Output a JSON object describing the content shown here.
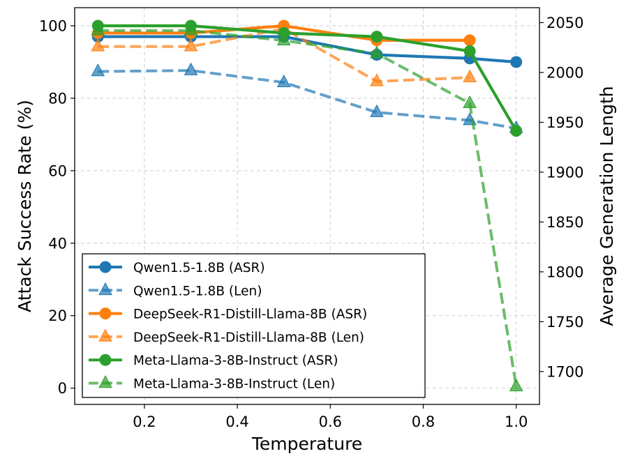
{
  "chart_data": {
    "type": "line",
    "xlabel": "Temperature",
    "ylabel": "Attack Success Rate (%)",
    "y2label": "Average Generation Length",
    "xlim": [
      0.05,
      1.05
    ],
    "ylim": [
      -4.5,
      105
    ],
    "y2lim": [
      1667,
      2065
    ],
    "xticks": [
      0.2,
      0.4,
      0.6,
      0.8,
      1.0
    ],
    "xtick_labels": [
      "0.2",
      "0.4",
      "0.6",
      "0.8",
      "1.0"
    ],
    "yticks": [
      0,
      20,
      40,
      60,
      80,
      100
    ],
    "ytick_labels": [
      "0",
      "20",
      "40",
      "60",
      "80",
      "100"
    ],
    "y2ticks": [
      1700,
      1750,
      1800,
      1850,
      1900,
      1950,
      2000,
      2050
    ],
    "y2tick_labels": [
      "1700",
      "1750",
      "1800",
      "1850",
      "1900",
      "1950",
      "2000",
      "2050"
    ],
    "grid": true,
    "legend_position": "lower-left",
    "series": [
      {
        "name": "Qwen1.5-1.8B (ASR)",
        "axis": "left",
        "style": "solid",
        "marker": "circle",
        "color": "#1f77b4",
        "x": [
          0.1,
          0.3,
          0.5,
          0.7,
          0.9,
          1.0
        ],
        "y": [
          97,
          97,
          97,
          92,
          91,
          90
        ]
      },
      {
        "name": "Qwen1.5-1.8B (Len)",
        "axis": "right",
        "style": "dashed",
        "marker": "triangle",
        "color": "#1f77b4",
        "x": [
          0.1,
          0.3,
          0.5,
          0.7,
          0.9,
          1.0
        ],
        "y": [
          2001,
          2002,
          1990,
          1960,
          1952,
          1944
        ]
      },
      {
        "name": "DeepSeek-R1-Distill-Llama-8B (ASR)",
        "axis": "left",
        "style": "solid",
        "marker": "circle",
        "color": "#ff7f0e",
        "x": [
          0.1,
          0.3,
          0.5,
          0.7,
          0.9
        ],
        "y": [
          98,
          98,
          100,
          96,
          96
        ]
      },
      {
        "name": "DeepSeek-R1-Distill-Llama-8B (Len)",
        "axis": "right",
        "style": "dashed",
        "marker": "triangle",
        "color": "#ff7f0e",
        "x": [
          0.1,
          0.3,
          0.5,
          0.7,
          0.9
        ],
        "y": [
          2026,
          2026,
          2044,
          1991,
          1995
        ]
      },
      {
        "name": "Meta-Llama-3-8B-Instruct (ASR)",
        "axis": "left",
        "style": "solid",
        "marker": "circle",
        "color": "#2ca02c",
        "x": [
          0.1,
          0.3,
          0.5,
          0.7,
          0.9,
          1.0
        ],
        "y": [
          100,
          100,
          98,
          97,
          93,
          71
        ]
      },
      {
        "name": "Meta-Llama-3-8B-Instruct (Len)",
        "axis": "right",
        "style": "dashed",
        "marker": "triangle",
        "color": "#2ca02c",
        "x": [
          0.1,
          0.3,
          0.5,
          0.7,
          0.9,
          1.0
        ],
        "y": [
          2042,
          2042,
          2032,
          2019,
          1969,
          1685
        ]
      }
    ]
  }
}
